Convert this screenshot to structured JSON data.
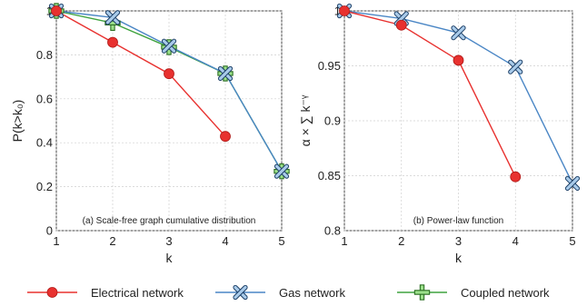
{
  "chart_data": [
    {
      "type": "line",
      "caption": "(a) Scale-free graph cumulative distribution",
      "xlabel": "k",
      "ylabel": "P(k>k₀)",
      "xlim": [
        1,
        5
      ],
      "ylim": [
        0,
        1
      ],
      "xticks": [
        "1",
        "2",
        "3",
        "4",
        "5"
      ],
      "yticks": [
        "0",
        "0.2",
        "0.4",
        "0.6",
        "0.8",
        "1"
      ],
      "grid": true,
      "series": [
        {
          "name": "Electrical network",
          "x": [
            1,
            2,
            3,
            4
          ],
          "values": [
            1.0,
            0.857,
            0.714,
            0.429
          ]
        },
        {
          "name": "Gas network",
          "x": [
            1,
            2,
            3,
            4,
            5
          ],
          "values": [
            1.0,
            0.97,
            0.84,
            0.715,
            0.27
          ]
        },
        {
          "name": "Coupled network",
          "x": [
            1,
            2,
            3,
            4,
            5
          ],
          "values": [
            1.0,
            0.945,
            0.835,
            0.715,
            0.27
          ]
        }
      ]
    },
    {
      "type": "line",
      "caption": "(b) Power-law function",
      "xlabel": "k",
      "ylabel": "α × ∑ k⁻ᵞ",
      "xlim": [
        1,
        5
      ],
      "ylim": [
        0.8,
        1
      ],
      "xticks": [
        "1",
        "2",
        "3",
        "4",
        "5"
      ],
      "yticks": [
        "0.8",
        "0.85",
        "0.9",
        "0.95",
        "1"
      ],
      "grid": true,
      "series": [
        {
          "name": "Electrical network",
          "x": [
            1,
            2,
            3,
            4
          ],
          "values": [
            1.0,
            0.987,
            0.955,
            0.849
          ]
        },
        {
          "name": "Gas network",
          "x": [
            1,
            2,
            3,
            4,
            5
          ],
          "values": [
            1.0,
            0.993,
            0.98,
            0.949,
            0.843
          ]
        }
      ]
    }
  ],
  "legend": {
    "position": "bottom",
    "items": [
      {
        "label": "Electrical network",
        "marker": "circle",
        "color": "#e8312f",
        "fill": "#e8312f"
      },
      {
        "label": "Gas network",
        "marker": "x",
        "color": "#4a86c5",
        "fill": "#a9cbea"
      },
      {
        "label": "Coupled network",
        "marker": "plus",
        "color": "#3fa33f",
        "fill": "#9be08a"
      }
    ]
  },
  "colors": {
    "electrical": "#e8312f",
    "gas": "#4a86c5",
    "gas_fill": "#a9cbea",
    "coupled": "#3fa33f",
    "coupled_fill": "#9be08a"
  }
}
